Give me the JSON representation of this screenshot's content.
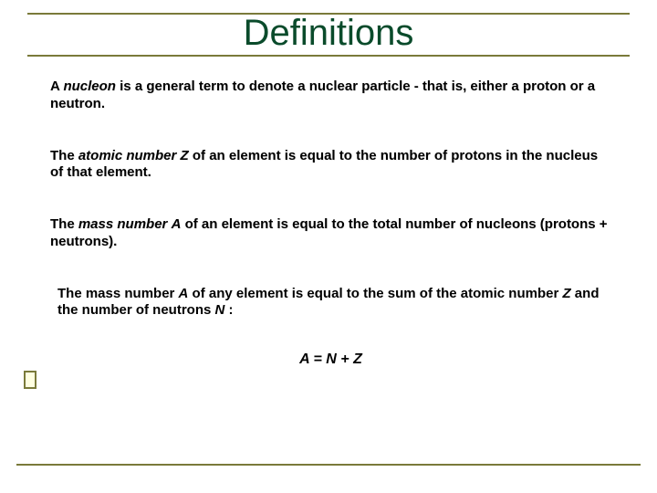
{
  "title": "Definitions",
  "colors": {
    "title_color": "#0a4b2b",
    "rule_color": "#7a7a3a",
    "text_color": "#000000",
    "background": "#ffffff"
  },
  "typography": {
    "title_fontsize": 40,
    "body_fontsize": 15,
    "body_weight": "bold"
  },
  "paragraphs": {
    "p1_a": "A ",
    "p1_b": "nucleon",
    "p1_c": " is a general term to denote a nuclear particle - that is, either a proton or a neutron.",
    "p2_a": "The ",
    "p2_b": "atomic number",
    "p2_c": " ",
    "p2_d": "Z",
    "p2_e": " of an element is equal to the number of protons in the nucleus of that element.",
    "p3_a": "The ",
    "p3_b": "mass number",
    "p3_c": " ",
    "p3_d": "A",
    "p3_e": " of an element is equal to the total number of nucleons (protons + neutrons).",
    "p4_a": "The mass number ",
    "p4_b": "A",
    "p4_c": " of any element is equal to the sum of the atomic number ",
    "p4_d": "Z",
    "p4_e": " and the number of neutrons ",
    "p4_f": "N",
    "p4_g": " :"
  },
  "equation": "A = N + Z"
}
